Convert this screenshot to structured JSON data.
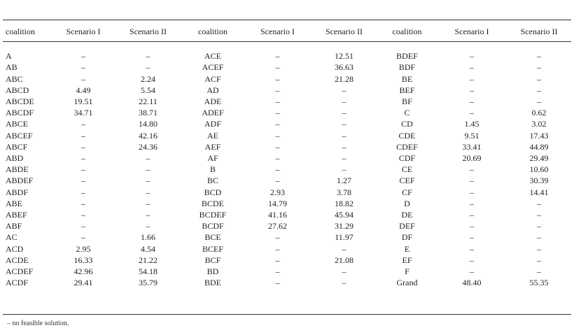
{
  "headers": [
    "coalition",
    "Scenario I",
    "Scenario II",
    "coalition",
    "Scenario I",
    "Scenario II",
    "coalition",
    "Scenario I",
    "Scenario II"
  ],
  "rows": [
    [
      "A",
      "–",
      "–",
      "ACE",
      "–",
      "12.51",
      "BDEF",
      "–",
      "–"
    ],
    [
      "AB",
      "–",
      "–",
      "ACEF",
      "–",
      "36.63",
      "BDF",
      "–",
      "–"
    ],
    [
      "ABC",
      "–",
      "2.24",
      "ACF",
      "–",
      "21.28",
      "BE",
      "–",
      "–"
    ],
    [
      "ABCD",
      "4.49",
      "5.54",
      "AD",
      "–",
      "–",
      "BEF",
      "–",
      "–"
    ],
    [
      "ABCDE",
      "19.51",
      "22.11",
      "ADE",
      "–",
      "–",
      "BF",
      "–",
      "–"
    ],
    [
      "ABCDF",
      "34.71",
      "38.71",
      "ADEF",
      "–",
      "–",
      "C",
      "–",
      "0.62"
    ],
    [
      "ABCE",
      "–",
      "14.80",
      "ADF",
      "–",
      "–",
      "CD",
      "1.45",
      "3.02"
    ],
    [
      "ABCEF",
      "–",
      "42.16",
      "AE",
      "–",
      "–",
      "CDE",
      "9.51",
      "17.43"
    ],
    [
      "ABCF",
      "–",
      "24.36",
      "AEF",
      "–",
      "–",
      "CDEF",
      "33.41",
      "44.89"
    ],
    [
      "ABD",
      "–",
      "–",
      "AF",
      "–",
      "–",
      "CDF",
      "20.69",
      "29.49"
    ],
    [
      "ABDE",
      "–",
      "–",
      "B",
      "–",
      "–",
      "CE",
      "–",
      "10.60"
    ],
    [
      "ABDEF",
      "–",
      "–",
      "BC",
      "–",
      "1.27",
      "CEF",
      "–",
      "30.39"
    ],
    [
      "ABDF",
      "–",
      "–",
      "BCD",
      "2.93",
      "3.78",
      "CF",
      "–",
      "14.41"
    ],
    [
      "ABE",
      "–",
      "–",
      "BCDE",
      "14.79",
      "18.82",
      "D",
      "–",
      "–"
    ],
    [
      "ABEF",
      "–",
      "–",
      "BCDEF",
      "41.16",
      "45.94",
      "DE",
      "–",
      "–"
    ],
    [
      "ABF",
      "–",
      "–",
      "BCDF",
      "27.62",
      "31.29",
      "DEF",
      "–",
      "–"
    ],
    [
      "AC",
      "–",
      "1.66",
      "BCE",
      "–",
      "11.97",
      "DF",
      "–",
      "–"
    ],
    [
      "ACD",
      "2.95",
      "4.54",
      "BCEF",
      "–",
      "–",
      "E",
      "–",
      "–"
    ],
    [
      "ACDE",
      "16.33",
      "21.22",
      "BCF",
      "–",
      "21.08",
      "EF",
      "–",
      "–"
    ],
    [
      "ACDEF",
      "42.96",
      "54.18",
      "BD",
      "–",
      "–",
      "F",
      "–",
      "–"
    ],
    [
      "ACDF",
      "29.41",
      "35.79",
      "BDE",
      "–",
      "–",
      "Grand",
      "48.40",
      "55.35"
    ]
  ],
  "footnote": "– no feasible solution."
}
